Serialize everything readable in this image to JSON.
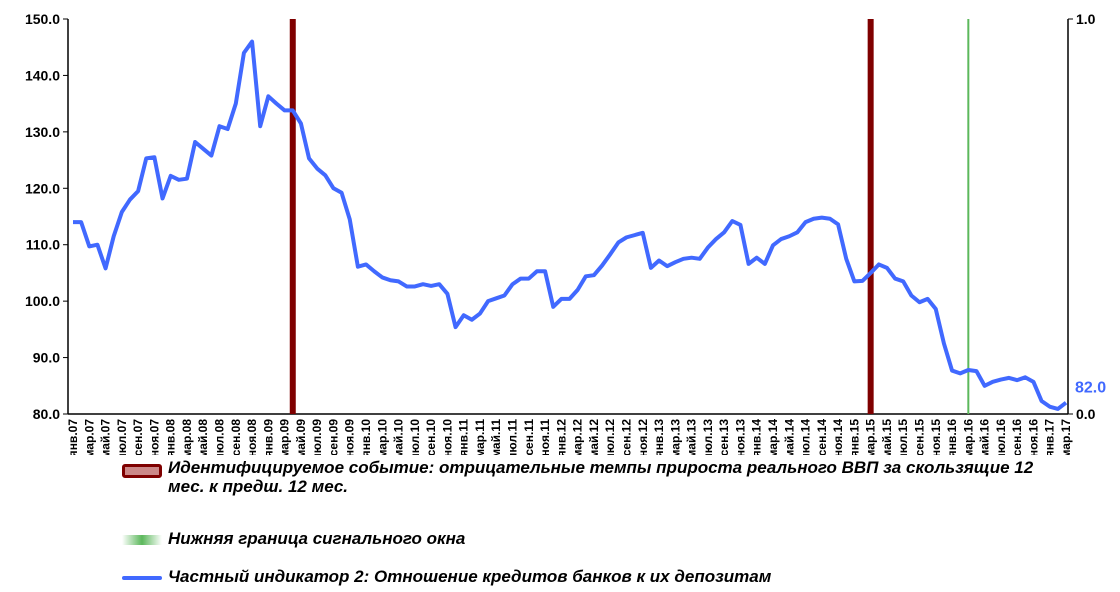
{
  "chart_data": {
    "type": "line",
    "categories": [
      "янв.07",
      null,
      "мар.07",
      null,
      "май.07",
      null,
      "июл.07",
      null,
      "сен.07",
      null,
      "ноя.07",
      null,
      "янв.08",
      null,
      "мар.08",
      null,
      "май.08",
      null,
      "июл.08",
      null,
      "сен.08",
      null,
      "ноя.08",
      null,
      "янв.09",
      null,
      "мар.09",
      null,
      "май.09",
      null,
      "июл.09",
      null,
      "сен.09",
      null,
      "ноя.09",
      null,
      "янв.10",
      null,
      "мар.10",
      null,
      "май.10",
      null,
      "июл.10",
      null,
      "сен.10",
      null,
      "ноя.10",
      null,
      "янв.11",
      null,
      "мар.11",
      null,
      "май.11",
      null,
      "июл.11",
      null,
      "сен.11",
      null,
      "ноя.11",
      null,
      "янв.12",
      null,
      "мар.12",
      null,
      "май.12",
      null,
      "июл.12",
      null,
      "сен.12",
      null,
      "ноя.12",
      null,
      "янв.13",
      null,
      "мар.13",
      null,
      "май.13",
      null,
      "июл.13",
      null,
      "сен.13",
      null,
      "ноя.13",
      null,
      "янв.14",
      null,
      "мар.14",
      null,
      "май.14",
      null,
      "июл.14",
      null,
      "сен.14",
      null,
      "ноя.14",
      null,
      "янв.15",
      null,
      "мар.15",
      null,
      "май.15",
      null,
      "июл.15",
      null,
      "сен.15",
      null,
      "ноя.15",
      null,
      "янв.16",
      null,
      "мар.16",
      null,
      "май.16",
      null,
      "июл.16",
      null,
      "сен.16",
      null,
      "ноя.16",
      null,
      "янв.17",
      null,
      "мар.17"
    ],
    "series": [
      {
        "name": "Идентифицируемое событие: отрицательные темпы прироста реального ВВП за скользящие 12 мес. к предш. 12 мес.",
        "color": "#7f0000",
        "type": "bar",
        "axis": "y2",
        "values": [
          0,
          0,
          0,
          0,
          0,
          0,
          0,
          0,
          0,
          0,
          0,
          0,
          0,
          0,
          0,
          0,
          0,
          0,
          0,
          0,
          0,
          0,
          0,
          0,
          0,
          0,
          0,
          1,
          0,
          0,
          0,
          0,
          0,
          0,
          0,
          0,
          0,
          0,
          0,
          0,
          0,
          0,
          0,
          0,
          0,
          0,
          0,
          0,
          0,
          0,
          0,
          0,
          0,
          0,
          0,
          0,
          0,
          0,
          0,
          0,
          0,
          0,
          0,
          0,
          0,
          0,
          0,
          0,
          0,
          0,
          0,
          0,
          0,
          0,
          0,
          0,
          0,
          0,
          0,
          0,
          0,
          0,
          0,
          0,
          0,
          0,
          0,
          0,
          0,
          0,
          0,
          0,
          0,
          0,
          0,
          0,
          0,
          0,
          1,
          0,
          0,
          0,
          0,
          0,
          0,
          0,
          0,
          0,
          0,
          0,
          0,
          0,
          0,
          0,
          0,
          0,
          0,
          0,
          0,
          0,
          0,
          0,
          0
        ]
      },
      {
        "name": "Нижняя граница сигнального окна",
        "color": "#5cb85c",
        "type": "bar",
        "axis": "y2",
        "values": [
          0,
          0,
          0,
          0,
          0,
          0,
          0,
          0,
          0,
          0,
          0,
          0,
          0,
          0,
          0,
          0,
          0,
          0,
          0,
          0,
          0,
          0,
          0,
          0,
          0,
          0,
          0,
          0,
          0,
          0,
          0,
          0,
          0,
          0,
          0,
          0,
          0,
          0,
          0,
          0,
          0,
          0,
          0,
          0,
          0,
          0,
          0,
          0,
          0,
          0,
          0,
          0,
          0,
          0,
          0,
          0,
          0,
          0,
          0,
          0,
          0,
          0,
          0,
          0,
          0,
          0,
          0,
          0,
          0,
          0,
          0,
          0,
          0,
          0,
          0,
          0,
          0,
          0,
          0,
          0,
          0,
          0,
          0,
          0,
          0,
          0,
          0,
          0,
          0,
          0,
          0,
          0,
          0,
          0,
          0,
          0,
          0,
          0,
          0,
          0,
          0,
          0,
          0,
          0,
          0,
          0,
          0,
          0,
          0,
          0,
          1,
          0,
          0,
          0,
          0,
          0,
          0,
          0,
          0,
          0,
          0,
          0,
          0
        ]
      },
      {
        "name": "Частный индикатор 2: Отношение кредитов банков к их депозитам",
        "color": "#4169ff",
        "type": "line",
        "values": [
          114,
          114,
          109.7,
          110,
          105.8,
          111.5,
          115.8,
          118,
          119.5,
          125.3,
          125.5,
          118.2,
          122.2,
          121.5,
          121.7,
          128.2,
          127,
          125.8,
          131,
          130.5,
          135,
          144,
          146,
          131,
          136.3,
          135,
          133.8,
          133.8,
          131.5,
          125.3,
          123.5,
          122.3,
          120,
          119.2,
          114.5,
          106.1,
          106.5,
          105.3,
          104.2,
          103.7,
          103.5,
          102.6,
          102.6,
          103,
          102.7,
          103,
          101.3,
          95.4,
          97.5,
          96.7,
          97.8,
          100,
          100.5,
          101,
          103,
          104,
          104,
          105.3,
          105.3,
          99,
          100.4,
          100.4,
          102,
          104.4,
          104.6,
          106.3,
          108.3,
          110.4,
          111.3,
          111.7,
          112.1,
          105.9,
          107.2,
          106.2,
          106.9,
          107.5,
          107.7,
          107.5,
          109.5,
          111,
          112.2,
          114.2,
          113.5,
          106.6,
          107.7,
          106.6,
          109.9,
          111,
          111.5,
          112.2,
          114,
          114.6,
          114.8,
          114.6,
          113.6,
          107.5,
          103.5,
          103.6,
          105,
          106.5,
          105.9,
          104,
          103.5,
          101,
          99.8,
          100.4,
          98.6,
          92.5,
          87.7,
          87.2,
          87.8,
          87.6,
          85,
          85.7,
          86.1,
          86.4,
          86,
          86.5,
          85.7,
          82.3,
          81.3,
          80.9,
          82
        ],
        "value_labels": [
          null,
          null,
          null,
          null,
          null,
          null,
          null,
          null,
          null,
          null,
          null,
          null,
          null,
          null,
          null,
          null,
          null,
          null,
          null,
          null,
          null,
          null,
          null,
          null,
          null,
          null,
          null,
          null,
          null,
          null,
          null,
          null,
          null,
          null,
          null,
          null,
          null,
          null,
          null,
          null,
          null,
          null,
          null,
          null,
          null,
          null,
          null,
          null,
          null,
          null,
          null,
          null,
          null,
          null,
          null,
          null,
          null,
          null,
          null,
          null,
          null,
          null,
          null,
          null,
          null,
          null,
          null,
          null,
          null,
          null,
          null,
          null,
          null,
          null,
          null,
          null,
          null,
          null,
          null,
          null,
          null,
          null,
          null,
          null,
          null,
          null,
          null,
          null,
          null,
          null,
          null,
          null,
          null,
          null,
          null,
          null,
          null,
          null,
          null,
          null,
          null,
          null,
          null,
          null,
          null,
          null,
          null,
          null,
          null,
          null,
          null,
          null,
          null,
          null,
          null,
          null,
          null,
          null,
          null,
          null,
          null,
          null,
          "82.0"
        ]
      }
    ],
    "ylim": [
      80,
      150
    ],
    "yticks": [
      {
        "value": 80,
        "label": "80.0"
      },
      {
        "value": 90,
        "label": "90.0"
      },
      {
        "value": 100,
        "label": "100.0"
      },
      {
        "value": 110,
        "label": "110.0"
      },
      {
        "value": 120,
        "label": "120.0"
      },
      {
        "value": 130,
        "label": "130.0"
      },
      {
        "value": 140,
        "label": "140.0"
      },
      {
        "value": 150,
        "label": "150.0"
      }
    ],
    "y2lim": [
      0,
      1
    ],
    "y2ticks": [
      {
        "value": 0,
        "label": "0.0"
      },
      {
        "value": 1,
        "label": "1.0"
      }
    ],
    "grid": false
  }
}
